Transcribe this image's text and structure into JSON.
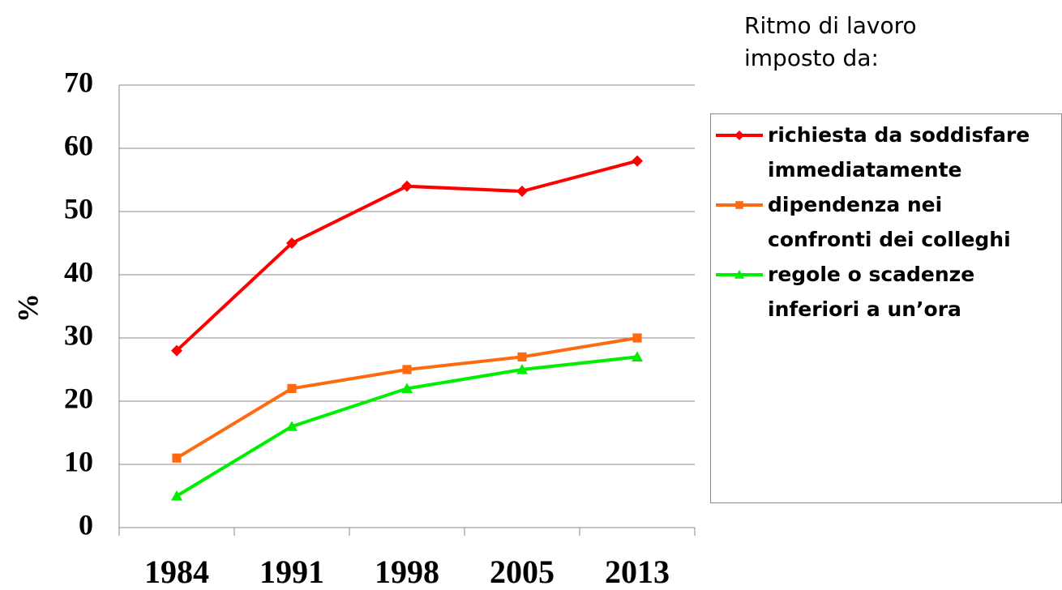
{
  "chart_data": {
    "type": "line",
    "annotation": "Ritmo di lavoro imposto da:",
    "y_label": "%",
    "categories": [
      "1984",
      "1991",
      "1998",
      "2005",
      "2013"
    ],
    "series": [
      {
        "name": "richiesta da soddisfare immediatamente",
        "color": "#ff0000",
        "marker": "diamond",
        "values": [
          28,
          45,
          54,
          53.2,
          58
        ]
      },
      {
        "name": "dipendenza nei confronti dei colleghi",
        "color": "#ff6a10",
        "marker": "square",
        "values": [
          11,
          22,
          25,
          27,
          30
        ]
      },
      {
        "name": "regole o scadenze inferiori a un’ora",
        "color": "#00ee00",
        "marker": "triangle",
        "values": [
          5,
          16,
          22,
          25,
          27
        ]
      }
    ],
    "ylim": [
      0,
      70
    ],
    "yticks": [
      0,
      10,
      20,
      30,
      40,
      50,
      60,
      70
    ],
    "grid": true,
    "legend": "right"
  }
}
